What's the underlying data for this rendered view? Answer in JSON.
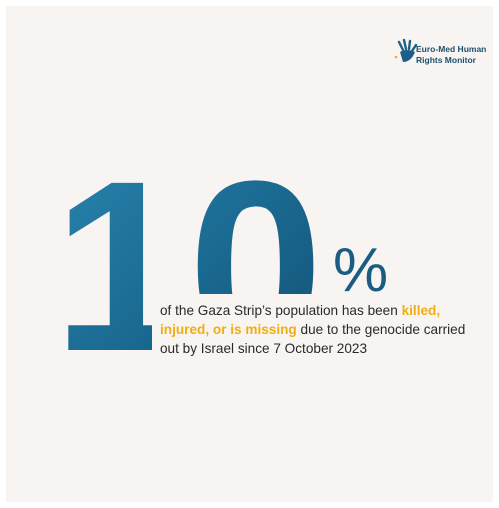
{
  "logo": {
    "line1": "Euro-Med Human",
    "line2": "Rights Monitor"
  },
  "stat": {
    "number": "10",
    "unit": "%"
  },
  "description": {
    "before": "of the Gaza Strip’s population has been ",
    "highlight": "killed, injured, or is missing",
    "after": " due to the genocide carried out by Israel since 7 October 2023"
  }
}
